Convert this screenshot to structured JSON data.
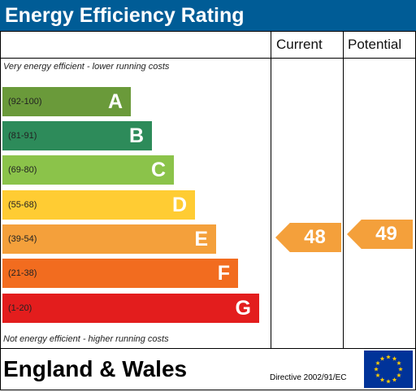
{
  "header": {
    "title": "Energy Efficiency Rating"
  },
  "columns": {
    "current": "Current",
    "potential": "Potential"
  },
  "notes": {
    "top": "Very energy efficient - lower running costs",
    "bottom": "Not energy efficient - higher running costs"
  },
  "bands": [
    {
      "range": "(92-100)",
      "letter": "A",
      "color": "#6a9a3a"
    },
    {
      "range": "(81-91)",
      "letter": "B",
      "color": "#2d8b5a"
    },
    {
      "range": "(69-80)",
      "letter": "C",
      "color": "#8bc34a"
    },
    {
      "range": "(55-68)",
      "letter": "D",
      "color": "#ffcc33"
    },
    {
      "range": "(39-54)",
      "letter": "E",
      "color": "#f4a03b"
    },
    {
      "range": "(21-38)",
      "letter": "F",
      "color": "#f26c1f"
    },
    {
      "range": "(1-20)",
      "letter": "G",
      "color": "#e31d1d"
    }
  ],
  "ratings": {
    "current": {
      "value": "48",
      "band": "E",
      "color": "#f4a03b"
    },
    "potential": {
      "value": "49",
      "band": "E",
      "color": "#f4a03b"
    }
  },
  "footer": {
    "region": "England & Wales",
    "directive": "Directive 2002/91/EC",
    "flag_color": "#003399",
    "star_color": "#ffcc00"
  }
}
